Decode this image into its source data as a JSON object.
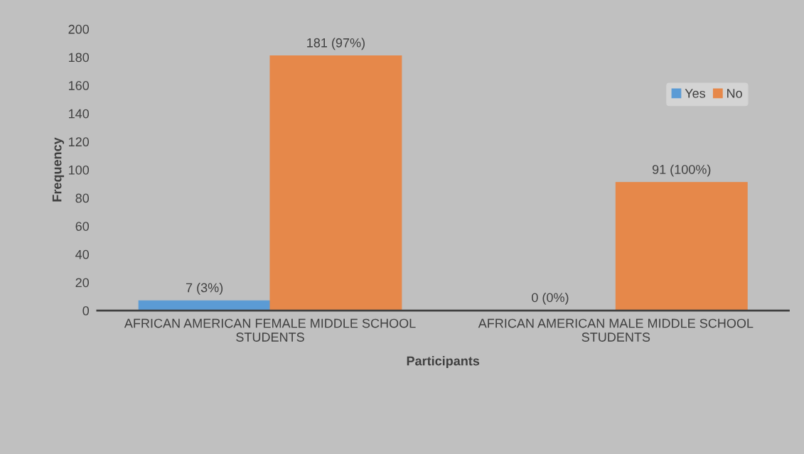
{
  "chart_data": {
    "type": "bar",
    "xlabel": "Participants",
    "ylabel": "Frequency",
    "categories": [
      "AFRICAN AMERICAN FEMALE MIDDLE SCHOOL STUDENTS",
      "AFRICAN AMERICAN MALE MIDDLE SCHOOL STUDENTS"
    ],
    "series": [
      {
        "name": "Yes",
        "color": "#5b9bd5",
        "values": [
          7,
          0
        ],
        "value_labels": [
          "7 (3%)",
          "0 (0%)"
        ]
      },
      {
        "name": "No",
        "color": "#e6884a",
        "values": [
          181,
          91
        ],
        "value_labels": [
          "181 (97%)",
          "91 (100%)"
        ]
      }
    ],
    "ylim": [
      0,
      200
    ],
    "yticks": [
      0,
      20,
      40,
      60,
      80,
      100,
      120,
      140,
      160,
      180,
      200
    ],
    "grid": false,
    "legend": "top right"
  }
}
